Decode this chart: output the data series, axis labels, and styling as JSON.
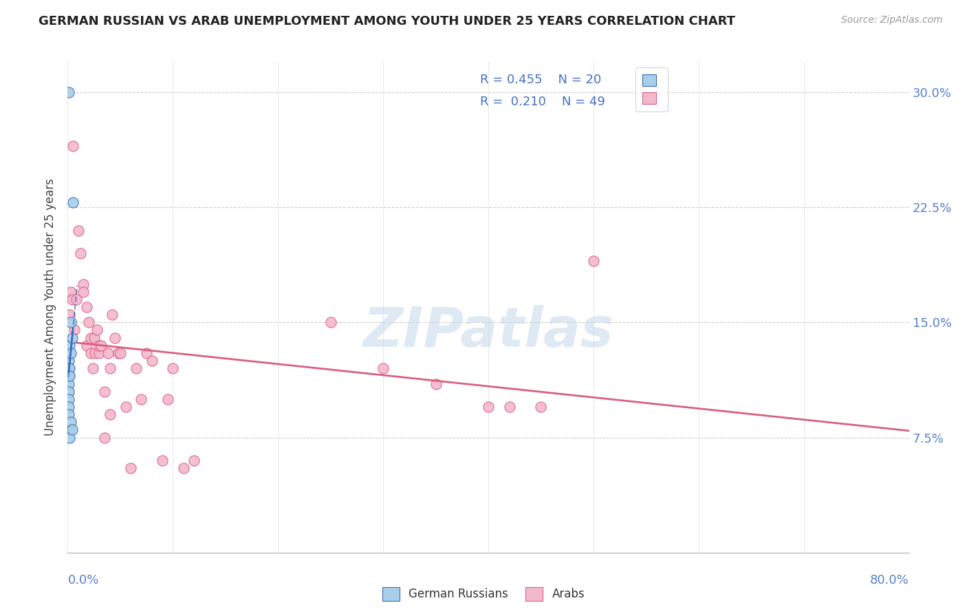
{
  "title": "GERMAN RUSSIAN VS ARAB UNEMPLOYMENT AMONG YOUTH UNDER 25 YEARS CORRELATION CHART",
  "source": "Source: ZipAtlas.com",
  "ylabel": "Unemployment Among Youth under 25 years",
  "yticks": [
    0.0,
    0.075,
    0.15,
    0.225,
    0.3
  ],
  "ytick_labels": [
    "",
    "7.5%",
    "15.0%",
    "22.5%",
    "30.0%"
  ],
  "xlim": [
    0.0,
    0.8
  ],
  "ylim": [
    0.0,
    0.32
  ],
  "legend_r1": "R = 0.455",
  "legend_n1": "N = 20",
  "legend_r2": "R = 0.210",
  "legend_n2": "N = 49",
  "watermark": "ZIPatlas",
  "german_russian_color": "#a8cfe8",
  "arab_color": "#f4b8cc",
  "german_russian_label": "German Russians",
  "arab_label": "Arabs",
  "blue_line_color": "#3a6bbf",
  "pink_line_color": "#d96080",
  "gr_x": [
    0.001,
    0.001,
    0.001,
    0.001,
    0.001,
    0.001,
    0.001,
    0.001,
    0.002,
    0.002,
    0.002,
    0.002,
    0.002,
    0.003,
    0.003,
    0.003,
    0.004,
    0.004,
    0.005,
    0.001
  ],
  "gr_y": [
    0.125,
    0.12,
    0.115,
    0.11,
    0.105,
    0.1,
    0.095,
    0.09,
    0.135,
    0.12,
    0.115,
    0.08,
    0.075,
    0.15,
    0.13,
    0.085,
    0.14,
    0.08,
    0.228,
    0.3
  ],
  "arab_x": [
    0.005,
    0.01,
    0.012,
    0.015,
    0.015,
    0.018,
    0.018,
    0.02,
    0.022,
    0.022,
    0.024,
    0.025,
    0.026,
    0.028,
    0.03,
    0.03,
    0.032,
    0.035,
    0.035,
    0.038,
    0.04,
    0.04,
    0.042,
    0.045,
    0.048,
    0.05,
    0.055,
    0.06,
    0.065,
    0.07,
    0.075,
    0.08,
    0.09,
    0.095,
    0.1,
    0.11,
    0.12,
    0.25,
    0.3,
    0.35,
    0.4,
    0.42,
    0.45,
    0.5,
    0.002,
    0.003,
    0.004,
    0.006,
    0.008
  ],
  "arab_y": [
    0.265,
    0.21,
    0.195,
    0.175,
    0.17,
    0.16,
    0.135,
    0.15,
    0.14,
    0.13,
    0.12,
    0.14,
    0.13,
    0.145,
    0.13,
    0.135,
    0.135,
    0.105,
    0.075,
    0.13,
    0.12,
    0.09,
    0.155,
    0.14,
    0.13,
    0.13,
    0.095,
    0.055,
    0.12,
    0.1,
    0.13,
    0.125,
    0.06,
    0.1,
    0.12,
    0.055,
    0.06,
    0.15,
    0.12,
    0.11,
    0.095,
    0.095,
    0.095,
    0.19,
    0.155,
    0.17,
    0.165,
    0.145,
    0.165
  ]
}
